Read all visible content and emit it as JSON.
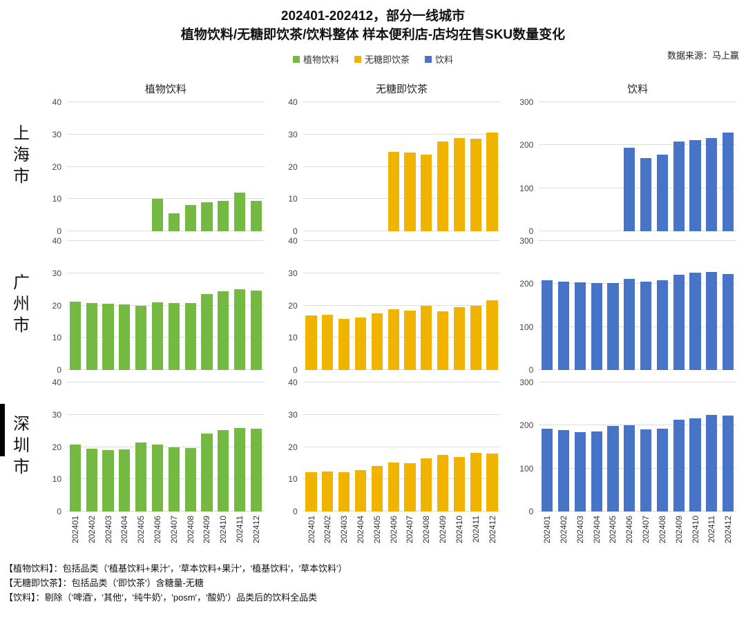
{
  "header": {
    "title_line1": "202401-202412，部分一线城市",
    "title_line2": "植物饮料/无糖即饮茶/饮料整体 样本便利店-店均在售SKU数量变化",
    "source": "数据来源：马上赢"
  },
  "legend": [
    {
      "label": "植物饮料",
      "color": "#74B942"
    },
    {
      "label": "无糖即饮茶",
      "color": "#F0B400"
    },
    {
      "label": "饮料",
      "color": "#4874C8"
    }
  ],
  "columns": [
    {
      "label": "植物饮料"
    },
    {
      "label": "无糖即饮茶"
    },
    {
      "label": "饮料"
    }
  ],
  "rows": [
    {
      "label": "上海市"
    },
    {
      "label": "广州市"
    },
    {
      "label": "深圳市"
    }
  ],
  "chart_data": [
    {
      "type": "bar",
      "city": "上海市",
      "category": "植物饮料",
      "color": "#74B942",
      "ylim": [
        0,
        40
      ],
      "yticks": [
        0,
        10,
        20,
        30,
        40
      ],
      "grid": true,
      "show_x_labels": false,
      "categories": [
        "202401",
        "202402",
        "202403",
        "202404",
        "202405",
        "202406",
        "202407",
        "202408",
        "202409",
        "202410",
        "202411",
        "202412"
      ],
      "values": [
        null,
        null,
        null,
        null,
        null,
        10,
        5.6,
        8.1,
        9,
        9.5,
        12,
        9.4
      ]
    },
    {
      "type": "bar",
      "city": "上海市",
      "category": "无糖即饮茶",
      "color": "#F0B400",
      "ylim": [
        0,
        40
      ],
      "yticks": [
        0,
        10,
        20,
        30,
        40
      ],
      "grid": true,
      "show_x_labels": false,
      "categories": [
        "202401",
        "202402",
        "202403",
        "202404",
        "202405",
        "202406",
        "202407",
        "202408",
        "202409",
        "202410",
        "202411",
        "202412"
      ],
      "values": [
        null,
        null,
        null,
        null,
        null,
        24.5,
        24.3,
        23.7,
        27.9,
        28.9,
        28.7,
        30.5
      ]
    },
    {
      "type": "bar",
      "city": "上海市",
      "category": "饮料",
      "color": "#4874C8",
      "ylim": [
        0,
        300
      ],
      "yticks": [
        0,
        100,
        200,
        300
      ],
      "grid": true,
      "show_x_labels": false,
      "categories": [
        "202401",
        "202402",
        "202403",
        "202404",
        "202405",
        "202406",
        "202407",
        "202408",
        "202409",
        "202410",
        "202411",
        "202412"
      ],
      "values": [
        null,
        null,
        null,
        null,
        null,
        194,
        170,
        178,
        209,
        212,
        216,
        229
      ]
    },
    {
      "type": "bar",
      "city": "广州市",
      "category": "植物饮料",
      "color": "#74B942",
      "ylim": [
        0,
        40
      ],
      "yticks": [
        0,
        10,
        20,
        30,
        40
      ],
      "grid": true,
      "show_x_labels": false,
      "categories": [
        "202401",
        "202402",
        "202403",
        "202404",
        "202405",
        "202406",
        "202407",
        "202408",
        "202409",
        "202410",
        "202411",
        "202412"
      ],
      "values": [
        21.2,
        20.7,
        20.6,
        20.4,
        19.9,
        21,
        20.7,
        20.7,
        23.6,
        24.3,
        25.1,
        24.5
      ]
    },
    {
      "type": "bar",
      "city": "广州市",
      "category": "无糖即饮茶",
      "color": "#F0B400",
      "ylim": [
        0,
        40
      ],
      "yticks": [
        0,
        10,
        20,
        30,
        40
      ],
      "grid": true,
      "show_x_labels": false,
      "categories": [
        "202401",
        "202402",
        "202403",
        "202404",
        "202405",
        "202406",
        "202407",
        "202408",
        "202409",
        "202410",
        "202411",
        "202412"
      ],
      "values": [
        17,
        17.2,
        15.8,
        16.2,
        17.5,
        18.9,
        18.5,
        19.9,
        18.2,
        19.4,
        20,
        21.6
      ]
    },
    {
      "type": "bar",
      "city": "广州市",
      "category": "饮料",
      "color": "#4874C8",
      "ylim": [
        0,
        300
      ],
      "yticks": [
        0,
        100,
        200,
        300
      ],
      "grid": true,
      "show_x_labels": false,
      "categories": [
        "202401",
        "202402",
        "202403",
        "202404",
        "202405",
        "202406",
        "202407",
        "202408",
        "202409",
        "202410",
        "202411",
        "202412"
      ],
      "values": [
        209,
        206,
        204,
        202,
        202,
        211,
        206,
        208,
        222,
        227,
        228,
        223
      ]
    },
    {
      "type": "bar",
      "city": "深圳市",
      "category": "植物饮料",
      "color": "#74B942",
      "ylim": [
        0,
        40
      ],
      "yticks": [
        0,
        10,
        20,
        30,
        40
      ],
      "grid": true,
      "show_x_labels": true,
      "categories": [
        "202401",
        "202402",
        "202403",
        "202404",
        "202405",
        "202406",
        "202407",
        "202408",
        "202409",
        "202410",
        "202411",
        "202412"
      ],
      "values": [
        20.8,
        19.5,
        19.1,
        19.3,
        21.4,
        20.7,
        19.8,
        19.6,
        24.1,
        25.2,
        25.8,
        25.6
      ]
    },
    {
      "type": "bar",
      "city": "深圳市",
      "category": "无糖即饮茶",
      "color": "#F0B400",
      "ylim": [
        0,
        40
      ],
      "yticks": [
        0,
        10,
        20,
        30,
        40
      ],
      "grid": true,
      "show_x_labels": true,
      "categories": [
        "202401",
        "202402",
        "202403",
        "202404",
        "202405",
        "202406",
        "202407",
        "202408",
        "202409",
        "202410",
        "202411",
        "202412"
      ],
      "values": [
        12.3,
        12.5,
        12.2,
        12.8,
        14.1,
        15.1,
        15,
        16.5,
        17.5,
        17,
        18.2,
        17.9
      ]
    },
    {
      "type": "bar",
      "city": "深圳市",
      "category": "饮料",
      "color": "#4874C8",
      "ylim": [
        0,
        300
      ],
      "yticks": [
        0,
        100,
        200,
        300
      ],
      "grid": true,
      "show_x_labels": true,
      "categories": [
        "202401",
        "202402",
        "202403",
        "202404",
        "202405",
        "202406",
        "202407",
        "202408",
        "202409",
        "202410",
        "202411",
        "202412"
      ],
      "values": [
        193,
        190,
        184,
        186,
        199,
        201,
        191,
        192,
        214,
        217,
        225,
        223
      ]
    }
  ],
  "footnotes": [
    "【植物饮料】：包括品类（'植基饮料+果汁'，'草本饮料+果汁'，'植基饮料'，'草本饮料'）",
    "【无糖即饮茶】：包括品类（'即饮茶'）含糖量-无糖",
    "【饮料】：剔除（'啤酒'，'其他'，'纯牛奶'，'posm'，'酸奶'）品类后的饮料全品类"
  ]
}
